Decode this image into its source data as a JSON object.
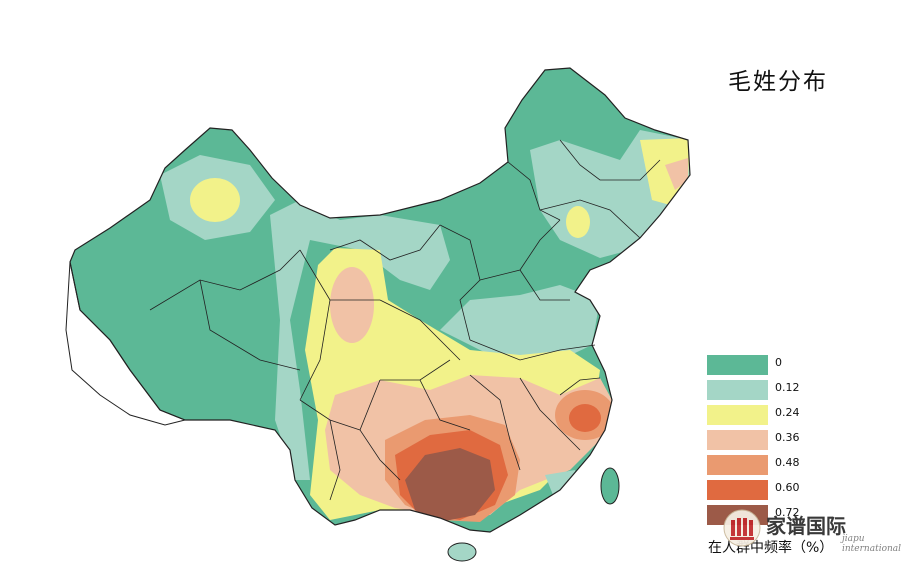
{
  "map": {
    "title": "毛姓分布",
    "unit_label": "在人群中频率（%）"
  },
  "legend": {
    "items": [
      {
        "label": "0",
        "color": "#5cb896"
      },
      {
        "label": "0.12",
        "color": "#a4d6c6"
      },
      {
        "label": "0.24",
        "color": "#f2f28a"
      },
      {
        "label": "0.36",
        "color": "#f1c2a6"
      },
      {
        "label": "0.48",
        "color": "#ea9a70"
      },
      {
        "label": "0.60",
        "color": "#e06a40"
      },
      {
        "label": "0.72",
        "color": "#9c5a48"
      }
    ]
  },
  "watermark": {
    "text": "家谱国际",
    "subtext": "jiapu international"
  }
}
